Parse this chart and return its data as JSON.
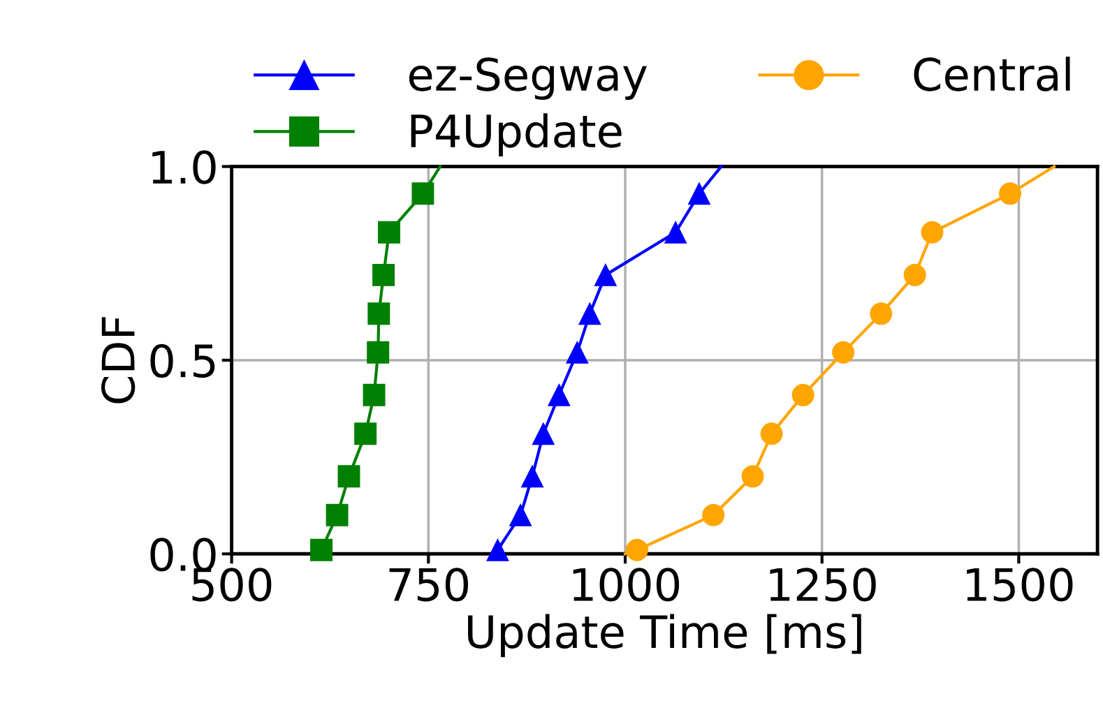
{
  "chart_data": {
    "type": "line",
    "xlabel": "Update Time [ms]",
    "ylabel": "CDF",
    "xlim": [
      500,
      1600
    ],
    "xticks": [
      500,
      750,
      1000,
      1250,
      1500
    ],
    "ylim": [
      0.0,
      1.0
    ],
    "yticks": [
      {
        "value": 0.0,
        "label": "0.0"
      },
      {
        "value": 0.5,
        "label": "0.5"
      },
      {
        "value": 1.0,
        "label": "1.0"
      }
    ],
    "grid": true,
    "legend": "top",
    "line_style": "solid",
    "series": [
      {
        "name": "ez-Segway",
        "color": "#0000ff",
        "marker": "triangle",
        "x": [
          834,
          838,
          867,
          882,
          896,
          916,
          939,
          955,
          975,
          1064,
          1094,
          1122
        ],
        "values": [
          0.0,
          0.01,
          0.1,
          0.2,
          0.31,
          0.41,
          0.52,
          0.62,
          0.72,
          0.83,
          0.93,
          1.0
        ]
      },
      {
        "name": "P4Update",
        "color": "#008000",
        "marker": "square",
        "x": [
          608,
          614,
          634,
          649,
          670,
          681,
          686,
          687,
          693,
          700,
          743,
          765
        ],
        "values": [
          0.0,
          0.01,
          0.1,
          0.2,
          0.31,
          0.41,
          0.52,
          0.62,
          0.72,
          0.83,
          0.93,
          1.0
        ]
      },
      {
        "name": "Central",
        "color": "#ffa500",
        "marker": "circle",
        "x": [
          1000,
          1015,
          1112,
          1162,
          1186,
          1226,
          1277,
          1325,
          1368,
          1390,
          1489,
          1545
        ],
        "values": [
          0.0,
          0.01,
          0.1,
          0.2,
          0.31,
          0.41,
          0.52,
          0.62,
          0.72,
          0.83,
          0.93,
          1.0
        ]
      }
    ]
  }
}
